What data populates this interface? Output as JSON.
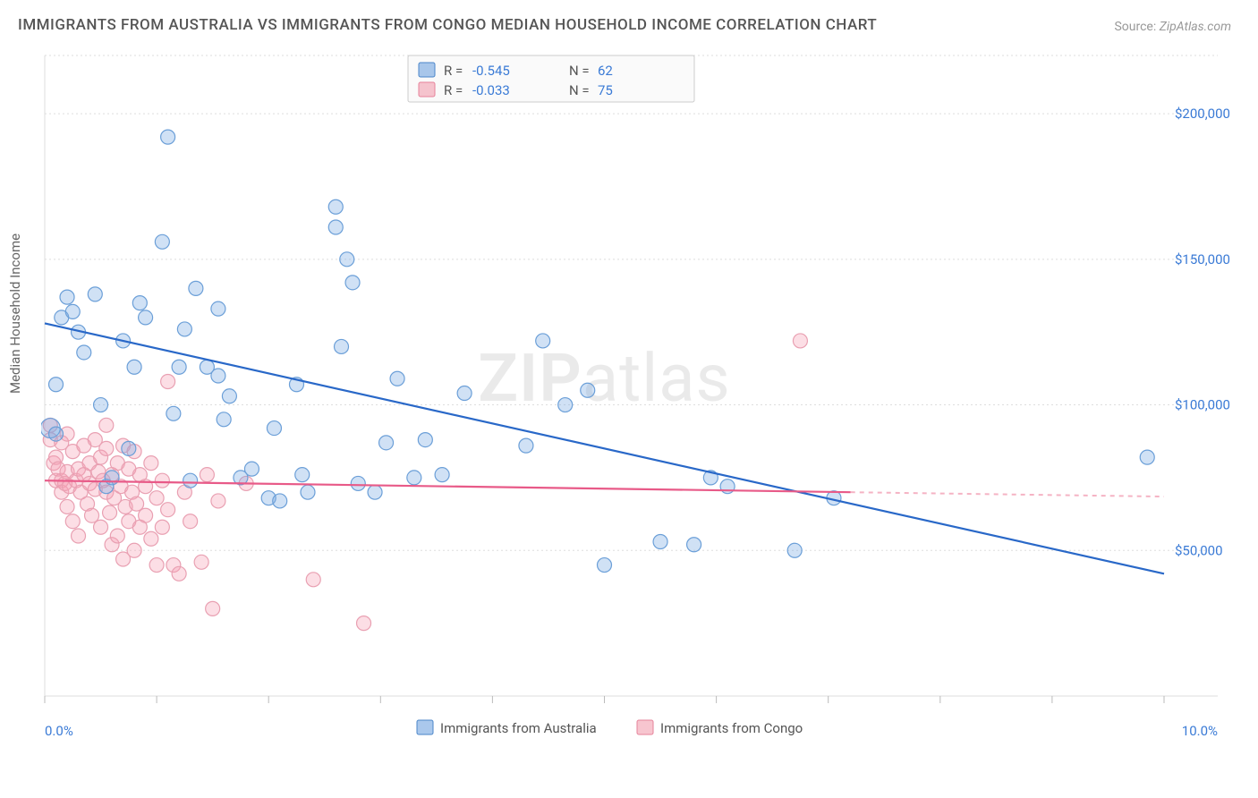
{
  "title": "IMMIGRANTS FROM AUSTRALIA VS IMMIGRANTS FROM CONGO MEDIAN HOUSEHOLD INCOME CORRELATION CHART",
  "source_label": "Source:",
  "source_value": "ZipAtlas.com",
  "ylabel": "Median Household Income",
  "watermark": "ZIPatlas",
  "chart": {
    "type": "scatter-correlation",
    "x_domain": [
      0,
      10
    ],
    "y_domain": [
      0,
      220000
    ],
    "x_unit": "%",
    "y_unit": "$",
    "xticks_major": [
      0,
      1,
      2,
      3,
      4,
      5,
      6,
      7,
      8,
      9,
      10
    ],
    "xticks_labeled": [
      {
        "v": 0,
        "label": "0.0%"
      },
      {
        "v": 10,
        "label": "10.0%"
      }
    ],
    "yticks": [
      {
        "v": 50000,
        "label": "$50,000"
      },
      {
        "v": 100000,
        "label": "$100,000"
      },
      {
        "v": 150000,
        "label": "$150,000"
      },
      {
        "v": 200000,
        "label": "$200,000"
      }
    ],
    "grid_color": "#dddddd",
    "background_color": "#ffffff",
    "marker_radius": 8,
    "marker_radius_large": 11,
    "series": [
      {
        "key": "australia",
        "label": "Immigrants from Australia",
        "color_fill": "rgba(120,170,225,0.35)",
        "color_stroke": "#6b9fd8",
        "trend_color": "#2968c8",
        "R": "-0.545",
        "N": "62",
        "trend": {
          "x1": 0,
          "y1": 128000,
          "x2": 10,
          "y2": 42000
        },
        "points": [
          [
            0.05,
            92000,
            11
          ],
          [
            0.1,
            90000
          ],
          [
            0.1,
            107000
          ],
          [
            0.15,
            130000
          ],
          [
            0.2,
            137000
          ],
          [
            0.25,
            132000
          ],
          [
            0.3,
            125000
          ],
          [
            0.35,
            118000
          ],
          [
            0.45,
            138000
          ],
          [
            0.5,
            100000
          ],
          [
            0.55,
            72000
          ],
          [
            0.6,
            75000
          ],
          [
            0.7,
            122000
          ],
          [
            0.75,
            85000
          ],
          [
            0.8,
            113000
          ],
          [
            0.85,
            135000
          ],
          [
            0.9,
            130000
          ],
          [
            1.05,
            156000
          ],
          [
            1.1,
            192000
          ],
          [
            1.15,
            97000
          ],
          [
            1.2,
            113000
          ],
          [
            1.25,
            126000
          ],
          [
            1.3,
            74000
          ],
          [
            1.35,
            140000
          ],
          [
            1.45,
            113000
          ],
          [
            1.55,
            133000
          ],
          [
            1.55,
            110000
          ],
          [
            1.6,
            95000
          ],
          [
            1.65,
            103000
          ],
          [
            1.75,
            75000
          ],
          [
            1.85,
            78000
          ],
          [
            2.0,
            68000
          ],
          [
            2.05,
            92000
          ],
          [
            2.1,
            67000
          ],
          [
            2.25,
            107000
          ],
          [
            2.3,
            76000
          ],
          [
            2.35,
            70000
          ],
          [
            2.6,
            168000
          ],
          [
            2.6,
            161000
          ],
          [
            2.65,
            120000
          ],
          [
            2.7,
            150000
          ],
          [
            2.75,
            142000
          ],
          [
            2.8,
            73000
          ],
          [
            2.95,
            70000
          ],
          [
            3.05,
            87000
          ],
          [
            3.15,
            109000
          ],
          [
            3.3,
            75000
          ],
          [
            3.4,
            88000
          ],
          [
            3.55,
            76000
          ],
          [
            3.75,
            104000
          ],
          [
            4.3,
            86000
          ],
          [
            4.45,
            122000
          ],
          [
            4.65,
            100000
          ],
          [
            4.85,
            105000
          ],
          [
            5.0,
            45000
          ],
          [
            5.5,
            53000
          ],
          [
            5.8,
            52000
          ],
          [
            5.95,
            75000
          ],
          [
            6.1,
            72000
          ],
          [
            6.7,
            50000
          ],
          [
            7.05,
            68000
          ],
          [
            9.85,
            82000
          ]
        ]
      },
      {
        "key": "congo",
        "label": "Immigrants from Congo",
        "color_fill": "rgba(245,160,180,0.35)",
        "color_stroke": "#e9a0b2",
        "trend_color": "#e85a88",
        "R": "-0.033",
        "N": "75",
        "trend": {
          "x1": 0,
          "y1": 74000,
          "x2": 7.2,
          "y2": 70000
        },
        "trend_dash": {
          "x1": 7.2,
          "y1": 70000,
          "x2": 10,
          "y2": 68500
        },
        "points": [
          [
            0.05,
            93000
          ],
          [
            0.05,
            88000
          ],
          [
            0.08,
            80000
          ],
          [
            0.1,
            74000
          ],
          [
            0.1,
            82000
          ],
          [
            0.12,
            78000
          ],
          [
            0.15,
            87000
          ],
          [
            0.15,
            74000
          ],
          [
            0.15,
            70000
          ],
          [
            0.18,
            73000
          ],
          [
            0.2,
            90000
          ],
          [
            0.2,
            65000
          ],
          [
            0.2,
            77000
          ],
          [
            0.22,
            72000
          ],
          [
            0.25,
            84000
          ],
          [
            0.25,
            60000
          ],
          [
            0.28,
            74000
          ],
          [
            0.3,
            78000
          ],
          [
            0.3,
            55000
          ],
          [
            0.32,
            70000
          ],
          [
            0.35,
            86000
          ],
          [
            0.35,
            76000
          ],
          [
            0.38,
            66000
          ],
          [
            0.4,
            80000
          ],
          [
            0.4,
            73000
          ],
          [
            0.42,
            62000
          ],
          [
            0.45,
            88000
          ],
          [
            0.45,
            71000
          ],
          [
            0.48,
            77000
          ],
          [
            0.5,
            82000
          ],
          [
            0.5,
            58000
          ],
          [
            0.52,
            74000
          ],
          [
            0.55,
            85000
          ],
          [
            0.55,
            93000
          ],
          [
            0.55,
            70000
          ],
          [
            0.58,
            63000
          ],
          [
            0.6,
            76000
          ],
          [
            0.6,
            52000
          ],
          [
            0.62,
            68000
          ],
          [
            0.65,
            80000
          ],
          [
            0.65,
            55000
          ],
          [
            0.68,
            72000
          ],
          [
            0.7,
            86000
          ],
          [
            0.7,
            47000
          ],
          [
            0.72,
            65000
          ],
          [
            0.75,
            78000
          ],
          [
            0.75,
            60000
          ],
          [
            0.78,
            70000
          ],
          [
            0.8,
            84000
          ],
          [
            0.8,
            50000
          ],
          [
            0.82,
            66000
          ],
          [
            0.85,
            76000
          ],
          [
            0.85,
            58000
          ],
          [
            0.9,
            72000
          ],
          [
            0.9,
            62000
          ],
          [
            0.95,
            80000
          ],
          [
            0.95,
            54000
          ],
          [
            1.0,
            68000
          ],
          [
            1.0,
            45000
          ],
          [
            1.05,
            74000
          ],
          [
            1.05,
            58000
          ],
          [
            1.1,
            108000
          ],
          [
            1.1,
            64000
          ],
          [
            1.15,
            45000
          ],
          [
            1.2,
            42000
          ],
          [
            1.25,
            70000
          ],
          [
            1.3,
            60000
          ],
          [
            1.4,
            46000
          ],
          [
            1.45,
            76000
          ],
          [
            1.5,
            30000
          ],
          [
            1.55,
            67000
          ],
          [
            1.8,
            73000
          ],
          [
            2.4,
            40000
          ],
          [
            2.85,
            25000
          ],
          [
            6.75,
            122000
          ]
        ]
      }
    ],
    "bottom_legend": [
      {
        "label": "Immigrants from Australia",
        "swatch": "blue"
      },
      {
        "label": "Immigrants from Congo",
        "swatch": "pink"
      }
    ],
    "stats_box_labels": {
      "R": "R =",
      "N": "N ="
    }
  }
}
